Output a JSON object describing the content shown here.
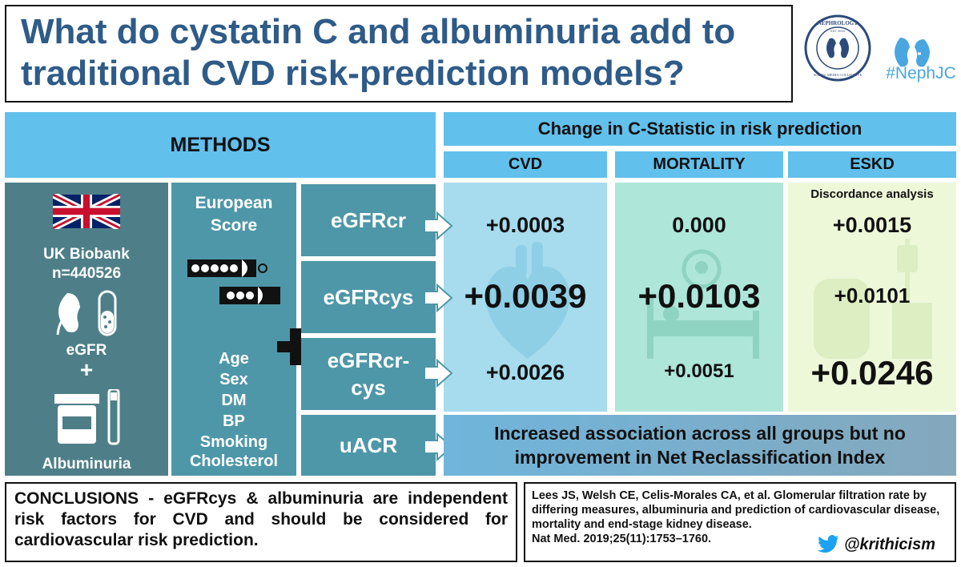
{
  "title": "What do cystatin C and albuminuria add to traditional CVD risk-prediction models?",
  "logos": {
    "neph_circle_text": "NEPHROLOGY",
    "neph_circle_subtext": "SOCIAL MEDIA COLLECTIVE",
    "neph_circle_year": "EST 2015",
    "nephjc": "#NephJC"
  },
  "headers": {
    "methods": "METHODS",
    "change": "Change in C-Statistic in risk prediction",
    "cvd": "CVD",
    "mortality": "MORTALITY",
    "eskd": "ESKD"
  },
  "uk": {
    "line1": "UK Biobank",
    "line2": "n=440526",
    "egfr": "eGFR",
    "plus": "+",
    "albuminuria": "Albuminuria"
  },
  "european": {
    "title1": "European",
    "title2": "Score",
    "factors": [
      "Age",
      "Sex",
      "DM",
      "BP",
      "Smoking",
      "Cholesterol"
    ]
  },
  "measures": [
    {
      "label": "eGFRcr"
    },
    {
      "label": "eGFRcys"
    },
    {
      "label1": "eGFRcr-",
      "label2": "cys"
    },
    {
      "label": "uACR"
    }
  ],
  "values": {
    "cvd": [
      "+0.0003",
      "+0.0039",
      "+0.0026"
    ],
    "mortality": [
      "0.000",
      "+0.0103",
      "+0.0051"
    ],
    "eskd": [
      "+0.0015",
      "+0.0101",
      "+0.0246"
    ],
    "eskd_note": "Discordance analysis"
  },
  "uacr_result": {
    "line1": "Increased association across all groups but no",
    "line2": "improvement in Net Reclassification Index"
  },
  "conclusion": "CONCLUSIONS - eGFRcys & albuminuria are independent risk factors for CVD and should be considered for cardiovascular risk prediction.",
  "reference": {
    "text": "Lees JS, Welsh CE, Celis-Morales CA, et al. Glomerular filtration rate by differing measures, albuminuria and prediction of cardiovascular disease, mortality and end-stage kidney disease.",
    "journal": "Nat Med. 2019;25(11):1753–1760.",
    "twitter": "@krithicism"
  },
  "colors": {
    "title": "#2e5b88",
    "header": "#61c0ec",
    "slate": "#4e7f88",
    "teal": "#4e97a8",
    "cvd_bg": "#a6dcee",
    "mort_bg": "#aee6da",
    "eskd_bg": "#edf8d9",
    "twitter": "#1da1f2"
  }
}
